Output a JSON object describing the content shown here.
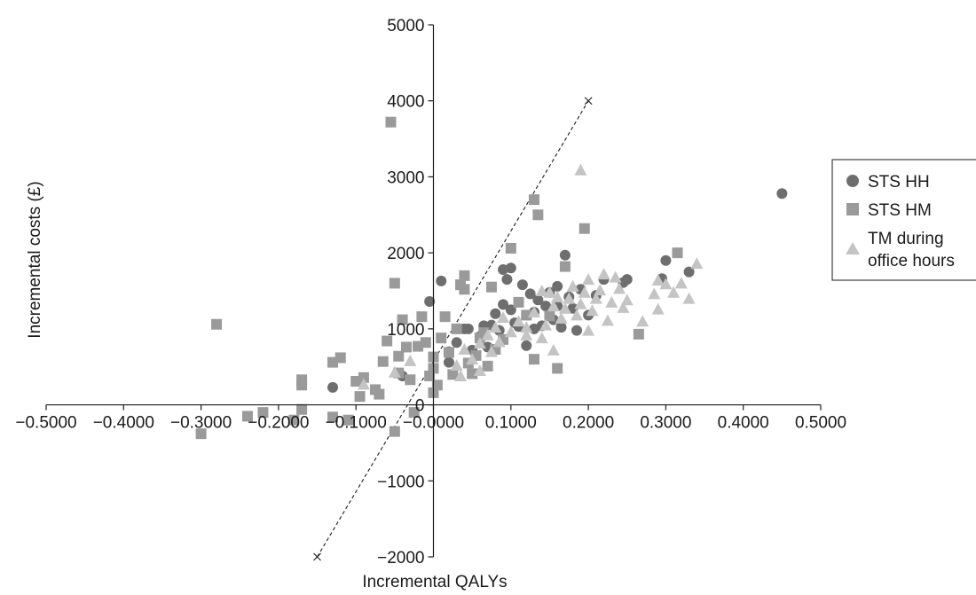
{
  "chart_data": {
    "type": "scatter",
    "xlabel": "Incremental QALYs",
    "ylabel": "Incremental costs (£)",
    "xlim": [
      -0.5,
      0.5
    ],
    "ylim": [
      -2000,
      5000
    ],
    "x_ticks": [
      "−0.5000",
      "−0.4000",
      "−0.3000",
      "−0.2000",
      "−0.1000",
      "−0.0000",
      "0.1000",
      "0.2000",
      "0.3000",
      "0.4000",
      "0.5000"
    ],
    "x_tick_values": [
      -0.5,
      -0.4,
      -0.3,
      -0.2,
      -0.1,
      0.0,
      0.1,
      0.2,
      0.3,
      0.4,
      0.5
    ],
    "y_ticks": [
      "−2000",
      "−1000",
      "0",
      "1000",
      "2000",
      "3000",
      "4000",
      "5000"
    ],
    "y_tick_values": [
      -2000,
      -1000,
      0,
      1000,
      2000,
      3000,
      4000,
      5000
    ],
    "grid": false,
    "legend_position": "right",
    "reference_line": {
      "style": "dashed",
      "from": [
        -0.15,
        -2000
      ],
      "to": [
        0.2,
        4000
      ],
      "end_markers": "x"
    },
    "series": [
      {
        "name": "STS HH",
        "marker": "circle",
        "color": "#6e6e6e",
        "points": [
          [
            0.45,
            2780
          ],
          [
            -0.13,
            230
          ],
          [
            0.3,
            1900
          ],
          [
            0.33,
            1750
          ],
          [
            0.295,
            1660
          ],
          [
            0.17,
            1970
          ],
          [
            0.09,
            1780
          ],
          [
            0.1,
            1800
          ],
          [
            0.01,
            1630
          ],
          [
            0.095,
            1650
          ],
          [
            -0.04,
            380
          ],
          [
            -0.005,
            1360
          ],
          [
            0.02,
            560
          ],
          [
            0.03,
            820
          ],
          [
            0.04,
            1000
          ],
          [
            0.05,
            720
          ],
          [
            0.06,
            900
          ],
          [
            0.065,
            1040
          ],
          [
            0.07,
            760
          ],
          [
            0.08,
            1200
          ],
          [
            0.085,
            980
          ],
          [
            0.09,
            1320
          ],
          [
            0.1,
            1250
          ],
          [
            0.105,
            1080
          ],
          [
            0.11,
            1030
          ],
          [
            0.115,
            1580
          ],
          [
            0.12,
            780
          ],
          [
            0.125,
            1460
          ],
          [
            0.13,
            1220
          ],
          [
            0.135,
            1380
          ],
          [
            0.14,
            1040
          ],
          [
            0.145,
            1300
          ],
          [
            0.15,
            1480
          ],
          [
            0.155,
            1120
          ],
          [
            0.16,
            1560
          ],
          [
            0.165,
            1020
          ],
          [
            0.175,
            1420
          ],
          [
            0.18,
            1270
          ],
          [
            0.185,
            980
          ],
          [
            0.19,
            1520
          ],
          [
            0.2,
            1180
          ],
          [
            0.21,
            1440
          ],
          [
            0.22,
            1650
          ],
          [
            0.245,
            1610
          ],
          [
            0.25,
            1650
          ],
          [
            0.02,
            700
          ],
          [
            0.045,
            1000
          ],
          [
            0.075,
            1050
          ],
          [
            0.13,
            1000
          ],
          [
            0.16,
            1300
          ]
        ]
      },
      {
        "name": "STS HM",
        "marker": "square",
        "color": "#9a9a9a",
        "points": [
          [
            -0.055,
            3720
          ],
          [
            -0.28,
            1060
          ],
          [
            -0.3,
            -380
          ],
          [
            -0.24,
            -150
          ],
          [
            -0.22,
            -100
          ],
          [
            -0.18,
            -200
          ],
          [
            -0.17,
            330
          ],
          [
            -0.17,
            260
          ],
          [
            -0.17,
            -60
          ],
          [
            -0.13,
            560
          ],
          [
            -0.12,
            620
          ],
          [
            -0.13,
            -160
          ],
          [
            -0.11,
            -200
          ],
          [
            -0.1,
            310
          ],
          [
            -0.095,
            110
          ],
          [
            -0.09,
            360
          ],
          [
            -0.075,
            200
          ],
          [
            -0.07,
            140
          ],
          [
            -0.065,
            570
          ],
          [
            -0.06,
            840
          ],
          [
            -0.05,
            1600
          ],
          [
            -0.045,
            640
          ],
          [
            -0.04,
            1120
          ],
          [
            -0.035,
            760
          ],
          [
            -0.03,
            330
          ],
          [
            -0.02,
            770
          ],
          [
            -0.015,
            1160
          ],
          [
            -0.01,
            820
          ],
          [
            -0.005,
            380
          ],
          [
            0.0,
            630
          ],
          [
            0.0,
            160
          ],
          [
            0.005,
            260
          ],
          [
            0.01,
            880
          ],
          [
            0.015,
            1160
          ],
          [
            0.02,
            690
          ],
          [
            0.03,
            1000
          ],
          [
            0.035,
            1580
          ],
          [
            0.04,
            1520
          ],
          [
            0.045,
            550
          ],
          [
            0.05,
            410
          ],
          [
            0.055,
            650
          ],
          [
            0.06,
            880
          ],
          [
            0.07,
            510
          ],
          [
            0.075,
            1550
          ],
          [
            0.08,
            730
          ],
          [
            0.09,
            860
          ],
          [
            0.1,
            2060
          ],
          [
            0.12,
            1180
          ],
          [
            0.13,
            2700
          ],
          [
            0.135,
            2500
          ],
          [
            0.15,
            1170
          ],
          [
            0.16,
            480
          ],
          [
            0.17,
            1820
          ],
          [
            0.195,
            2320
          ],
          [
            0.265,
            930
          ],
          [
            0.315,
            2000
          ],
          [
            0.13,
            600
          ],
          [
            0.025,
            400
          ],
          [
            -0.025,
            -100
          ],
          [
            -0.05,
            -350
          ],
          [
            0.04,
            1700
          ],
          [
            0.0,
            480
          ],
          [
            -0.045,
            420
          ],
          [
            0.065,
            950
          ],
          [
            0.11,
            1350
          ]
        ]
      },
      {
        "name": "TM during office hours",
        "name_lines": [
          "TM during",
          "office hours"
        ],
        "marker": "triangle",
        "color": "#c4c4c4",
        "points": [
          [
            0.19,
            3090
          ],
          [
            0.34,
            1860
          ],
          [
            0.32,
            1600
          ],
          [
            0.31,
            1480
          ],
          [
            0.33,
            1400
          ],
          [
            0.3,
            1590
          ],
          [
            0.29,
            1640
          ],
          [
            0.285,
            1460
          ],
          [
            0.29,
            1260
          ],
          [
            0.245,
            1280
          ],
          [
            0.24,
            1530
          ],
          [
            0.235,
            1680
          ],
          [
            0.22,
            1720
          ],
          [
            0.23,
            1350
          ],
          [
            0.225,
            1110
          ],
          [
            0.215,
            1510
          ],
          [
            0.21,
            1400
          ],
          [
            0.205,
            1240
          ],
          [
            0.2,
            1650
          ],
          [
            0.195,
            1480
          ],
          [
            0.19,
            1330
          ],
          [
            0.185,
            1180
          ],
          [
            0.18,
            1560
          ],
          [
            0.175,
            1400
          ],
          [
            0.17,
            1270
          ],
          [
            0.165,
            1140
          ],
          [
            0.16,
            1420
          ],
          [
            0.155,
            1300
          ],
          [
            0.15,
            1480
          ],
          [
            0.145,
            1050
          ],
          [
            0.14,
            880
          ],
          [
            0.13,
            1220
          ],
          [
            0.12,
            920
          ],
          [
            0.11,
            1100
          ],
          [
            0.1,
            960
          ],
          [
            0.09,
            1150
          ],
          [
            0.085,
            830
          ],
          [
            0.08,
            1020
          ],
          [
            0.075,
            700
          ],
          [
            0.07,
            920
          ],
          [
            0.06,
            810
          ],
          [
            0.05,
            600
          ],
          [
            0.04,
            730
          ],
          [
            0.03,
            520
          ],
          [
            -0.05,
            430
          ],
          [
            -0.09,
            270
          ],
          [
            -0.03,
            580
          ],
          [
            0.035,
            380
          ],
          [
            0.06,
            450
          ],
          [
            0.155,
            720
          ],
          [
            0.2,
            980
          ],
          [
            0.25,
            1380
          ],
          [
            0.27,
            1100
          ],
          [
            0.14,
            1500
          ],
          [
            0.12,
            1020
          ]
        ]
      }
    ]
  }
}
